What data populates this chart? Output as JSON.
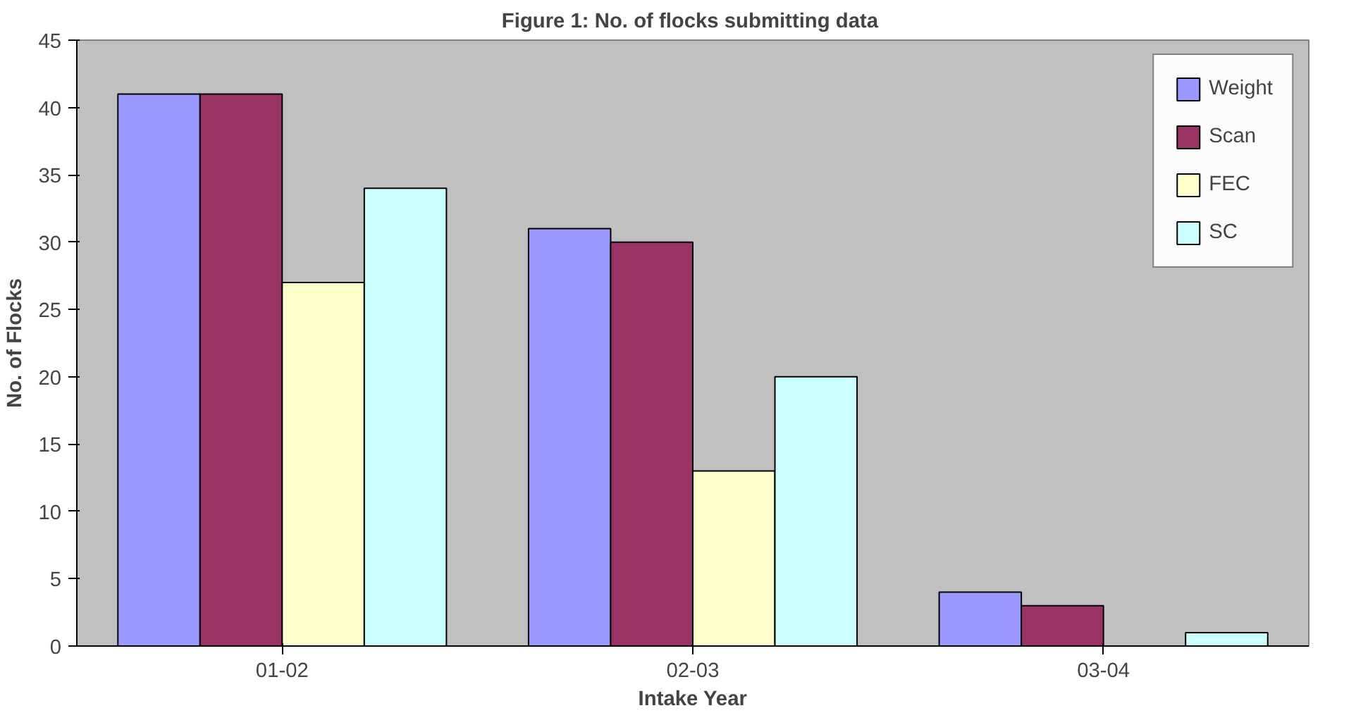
{
  "chart_data": {
    "type": "bar",
    "title": "Figure 1: No. of  flocks submitting data",
    "xlabel": "Intake Year",
    "ylabel": "No. of Flocks",
    "categories": [
      "01-02",
      "02-03",
      "03-04"
    ],
    "series": [
      {
        "name": "Weight",
        "color": "#9999ff",
        "values": [
          41,
          31,
          4
        ]
      },
      {
        "name": "Scan",
        "color": "#993366",
        "values": [
          41,
          30,
          3
        ]
      },
      {
        "name": "FEC",
        "color": "#ffffcc",
        "values": [
          27,
          13,
          0
        ]
      },
      {
        "name": "SC",
        "color": "#ccffff",
        "values": [
          34,
          20,
          1
        ]
      }
    ],
    "ylim": [
      0,
      45
    ],
    "yticks": [
      0,
      5,
      10,
      15,
      20,
      25,
      30,
      35,
      40,
      45
    ],
    "grid": false,
    "legend": "top right"
  }
}
